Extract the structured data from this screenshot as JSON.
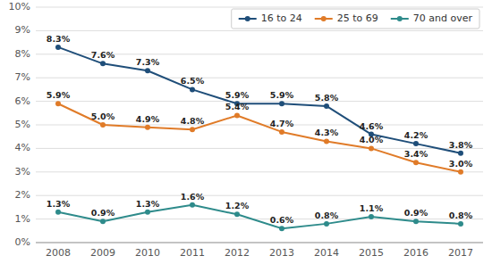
{
  "chart_data": {
    "type": "line",
    "x": [
      2008,
      2009,
      2010,
      2011,
      2012,
      2013,
      2014,
      2015,
      2016,
      2017
    ],
    "xlim": [
      2007.5,
      2017.5
    ],
    "xticks": [
      2008,
      2009,
      2010,
      2011,
      2012,
      2013,
      2014,
      2015,
      2016,
      2017
    ],
    "ylim": [
      0,
      10
    ],
    "yticks": [
      {
        "value": 0,
        "label": "0%"
      },
      {
        "value": 1,
        "label": "1%"
      },
      {
        "value": 2,
        "label": "2%"
      },
      {
        "value": 3,
        "label": "3%"
      },
      {
        "value": 4,
        "label": "4%"
      },
      {
        "value": 5,
        "label": "5%"
      },
      {
        "value": 6,
        "label": "6%"
      },
      {
        "value": 7,
        "label": "7%"
      },
      {
        "value": 8,
        "label": "8%"
      },
      {
        "value": 9,
        "label": "9%"
      },
      {
        "value": 10,
        "label": "10%"
      }
    ],
    "grid": true,
    "legend": "upper right",
    "data_labels": true,
    "marker": "o",
    "series": [
      {
        "name": "16 to 24",
        "color": "#1f4e79",
        "values": [
          8.3,
          7.6,
          7.3,
          6.5,
          5.9,
          5.9,
          5.8,
          4.6,
          4.2,
          3.8
        ],
        "value_labels": [
          "8.3%",
          "7.6%",
          "7.3%",
          "6.5%",
          "5.9%",
          "5.9%",
          "5.8%",
          "4.6%",
          "4.2%",
          "3.8%"
        ]
      },
      {
        "name": "25 to 69",
        "color": "#e07b28",
        "values": [
          5.9,
          5.0,
          4.9,
          4.8,
          5.4,
          4.7,
          4.3,
          4.0,
          3.4,
          3.0
        ],
        "value_labels": [
          "5.9%",
          "5.0%",
          "4.9%",
          "4.8%",
          "5.4%",
          "4.7%",
          "4.3%",
          "4.0%",
          "3.4%",
          "3.0%"
        ]
      },
      {
        "name": "70 and over",
        "color": "#2e8b8b",
        "values": [
          1.3,
          0.9,
          1.3,
          1.6,
          1.2,
          0.6,
          0.8,
          1.1,
          0.9,
          0.8
        ],
        "value_labels": [
          "1.3%",
          "0.9%",
          "1.3%",
          "1.6%",
          "1.2%",
          "0.6%",
          "0.8%",
          "1.1%",
          "0.9%",
          "0.8%"
        ]
      }
    ]
  }
}
